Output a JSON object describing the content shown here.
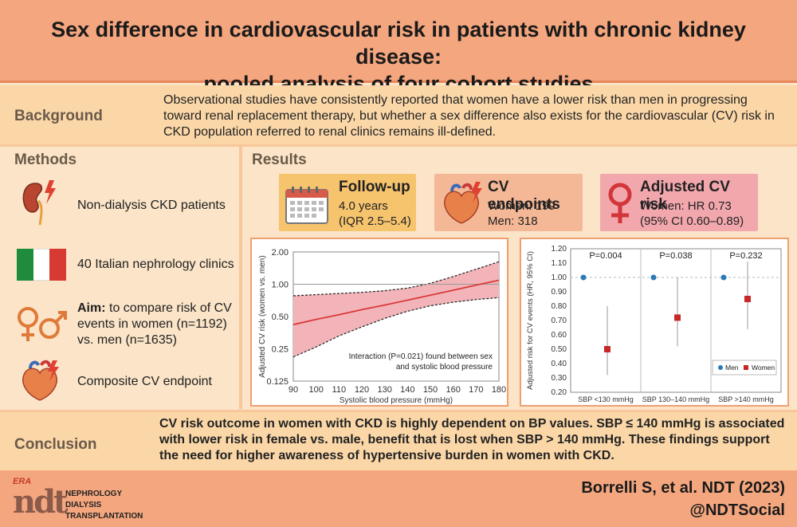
{
  "title": {
    "line1": "Sex difference in cardiovascular risk in patients with chronic kidney disease:",
    "line2": "pooled analysis of four cohort studies"
  },
  "background": {
    "label": "Background",
    "text": "Observational studies have consistently reported that women have a lower risk than men in progressing toward renal replacement therapy, but whether a sex difference also exists for the cardiovascular (CV) risk in CKD population referred to renal clinics remains ill-defined."
  },
  "methods": {
    "label": "Methods",
    "items": [
      {
        "icon": "kidney-icon",
        "text": "Non-dialysis CKD patients"
      },
      {
        "icon": "italy-flag-icon",
        "text": "40 Italian nephrology clinics"
      },
      {
        "icon": "gender-icon",
        "aim_label": "Aim:",
        "text": "to compare risk of CV events in women (n=1192) vs. men (n=1635)"
      },
      {
        "icon": "heart-icon",
        "text": "Composite CV endpoint"
      }
    ]
  },
  "results": {
    "label": "Results",
    "followup": {
      "title": "Follow-up",
      "line1": "4.0 years",
      "line2": "(IQR 2.5–5.4)"
    },
    "endpoints": {
      "title": "CV endpoints",
      "line1": "Women: 199",
      "line2": "Men: 318"
    },
    "adjusted": {
      "title": "Adjusted CV risk",
      "line1": "Women: HR 0.73",
      "line2": "(95% CI 0.60–0.89)"
    }
  },
  "colors": {
    "title_bg": "#f4a67e",
    "band_bg": "#fbd7a8",
    "panel_bg": "#fbe4c7",
    "followup_box": "#f7c46e",
    "endpoints_box": "#f4b896",
    "adjusted_box": "#f2a7ad",
    "curve": "#d93a3a",
    "ci_fill": "#f2b4b8",
    "women": "#c62828",
    "men": "#2a7ab8"
  },
  "chart_data": [
    {
      "type": "line",
      "title": "",
      "xlabel": "Systolic blood pressure (mmHg)",
      "ylabel": "Adjusted CV risk (women vs. men)",
      "xlim": [
        90,
        180
      ],
      "ylim": [
        0.125,
        2.0
      ],
      "y_scale": "log",
      "x_ticks": [
        "90",
        "100",
        "110",
        "120",
        "130",
        "140",
        "150",
        "160",
        "170",
        "180"
      ],
      "y_ticks": [
        "2.00",
        "1.00",
        "0.50",
        "0.25",
        "0.125"
      ],
      "reference_line": 1.0,
      "x": [
        90,
        100,
        110,
        120,
        130,
        140,
        150,
        160,
        170,
        180
      ],
      "series": [
        {
          "name": "HR",
          "values": [
            0.42,
            0.47,
            0.52,
            0.58,
            0.64,
            0.71,
            0.79,
            0.88,
            0.98,
            1.09
          ]
        },
        {
          "name": "lower CI",
          "values": [
            0.21,
            0.26,
            0.33,
            0.4,
            0.48,
            0.56,
            0.63,
            0.68,
            0.72,
            0.75
          ]
        },
        {
          "name": "upper CI",
          "values": [
            0.78,
            0.8,
            0.82,
            0.84,
            0.87,
            0.92,
            1.02,
            1.18,
            1.38,
            1.62
          ]
        }
      ],
      "annotation": "Interaction (P=0.021) found between sex and systolic blood pressure"
    },
    {
      "type": "scatter",
      "title": "",
      "xlabel": "",
      "ylabel": "Adjusted risk for CV events (HR, 95% CI)",
      "ylim": [
        0.2,
        1.2
      ],
      "y_ticks": [
        "1.20",
        "1.10",
        "1.00",
        "0.90",
        "0.80",
        "0.70",
        "0.60",
        "0.50",
        "0.40",
        "0.30",
        "0.20"
      ],
      "categories": [
        "SBP <130 mmHg",
        "SBP 130–140 mmHg",
        "SBP >140 mmHg"
      ],
      "p_values": [
        "P=0.004",
        "P=0.038",
        "P=0.232"
      ],
      "series": [
        {
          "name": "Men",
          "values": [
            1.0,
            1.0,
            1.0
          ]
        },
        {
          "name": "Women",
          "values": [
            0.5,
            0.72,
            0.85
          ],
          "ci_low": [
            0.32,
            0.52,
            0.64
          ],
          "ci_high": [
            0.8,
            1.0,
            1.11
          ]
        }
      ],
      "legend": [
        "Men",
        "Women"
      ]
    }
  ],
  "conclusion": {
    "label": "Conclusion",
    "text": "CV risk outcome in women with CKD is highly dependent on BP values. SBP ≤ 140 mmHg is associated with lower risk in female vs. male, benefit that is lost when SBP > 140 mmHg. These findings support the need for higher awareness of hypertensive burden in women with CKD."
  },
  "footer": {
    "logo_era": "ERA",
    "logo_ndt": "ndt",
    "journal_line1": "NEPHROLOGY",
    "journal_line2": "DIALYSIS",
    "journal_line3": "TRANSPLANTATION",
    "citation": "Borrelli S, et al. NDT (2023)",
    "handle": "@NDTSocial"
  }
}
